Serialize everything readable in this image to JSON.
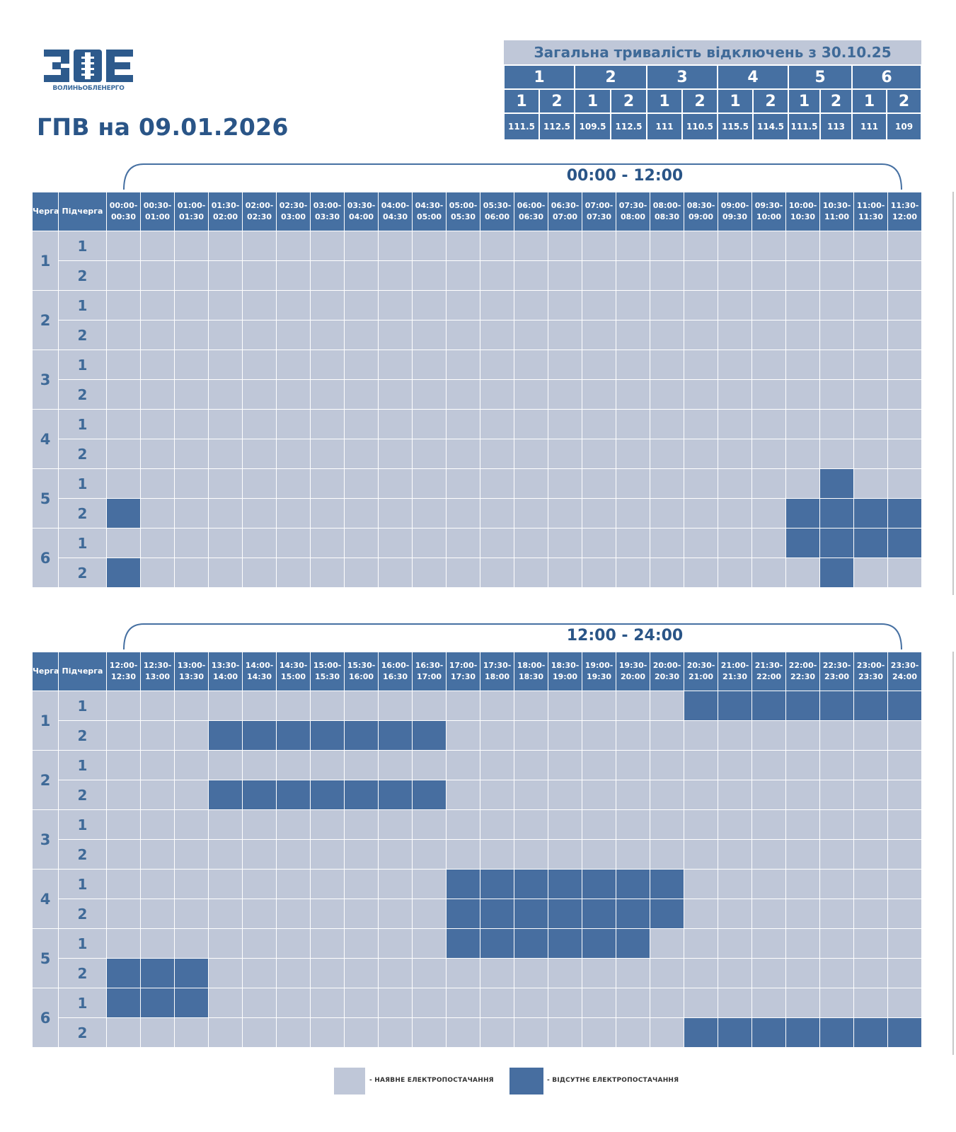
{
  "logo": {
    "mark": "ЗОЕ",
    "subtitle": "ВОЛИНЬОБЛЕНЕРГО"
  },
  "page_title": "ГПВ на 09.01.2026",
  "summary": {
    "title": "Загальна тривалість відключень з 30.10.25",
    "queues": [
      "1",
      "2",
      "3",
      "4",
      "5",
      "6"
    ],
    "subqueues": [
      "1",
      "2",
      "1",
      "2",
      "1",
      "2",
      "1",
      "2",
      "1",
      "2",
      "1",
      "2"
    ],
    "values": [
      "111.5",
      "112.5",
      "109.5",
      "112.5",
      "111",
      "110.5",
      "115.5",
      "114.5",
      "111.5",
      "113",
      "111",
      "109"
    ]
  },
  "grid_headers": {
    "queue": "Черга",
    "subqueue": "Підчерга"
  },
  "morning": {
    "range_label": "00:00 - 12:00",
    "slots": [
      "00:00-00:30",
      "00:30-01:00",
      "01:00-01:30",
      "01:30-02:00",
      "02:00-02:30",
      "02:30-03:00",
      "03:00-03:30",
      "03:30-04:00",
      "04:00-04:30",
      "04:30-05:00",
      "05:00-05:30",
      "05:30-06:00",
      "06:00-06:30",
      "06:30-07:00",
      "07:00-07:30",
      "07:30-08:00",
      "08:00-08:30",
      "08:30-09:00",
      "09:00-09:30",
      "09:30-10:00",
      "10:00-10:30",
      "10:30-11:00",
      "11:00-11:30",
      "11:30-12:00"
    ],
    "rows": [
      {
        "queue": "1",
        "sub": "1",
        "outages": []
      },
      {
        "queue": "1",
        "sub": "2",
        "outages": []
      },
      {
        "queue": "2",
        "sub": "1",
        "outages": []
      },
      {
        "queue": "2",
        "sub": "2",
        "outages": []
      },
      {
        "queue": "3",
        "sub": "1",
        "outages": []
      },
      {
        "queue": "3",
        "sub": "2",
        "outages": []
      },
      {
        "queue": "4",
        "sub": "1",
        "outages": []
      },
      {
        "queue": "4",
        "sub": "2",
        "outages": []
      },
      {
        "queue": "5",
        "sub": "1",
        "outages": [
          21
        ]
      },
      {
        "queue": "5",
        "sub": "2",
        "outages": [
          0,
          20,
          21,
          22,
          23
        ]
      },
      {
        "queue": "6",
        "sub": "1",
        "outages": [
          20,
          21,
          22,
          23
        ]
      },
      {
        "queue": "6",
        "sub": "2",
        "outages": [
          0,
          21
        ]
      }
    ]
  },
  "evening": {
    "range_label": "12:00 - 24:00",
    "slots": [
      "12:00-12:30",
      "12:30-13:00",
      "13:00-13:30",
      "13:30-14:00",
      "14:00-14:30",
      "14:30-15:00",
      "15:00-15:30",
      "15:30-16:00",
      "16:00-16:30",
      "16:30-17:00",
      "17:00-17:30",
      "17:30-18:00",
      "18:00-18:30",
      "18:30-19:00",
      "19:00-19:30",
      "19:30-20:00",
      "20:00-20:30",
      "20:30-21:00",
      "21:00-21:30",
      "21:30-22:00",
      "22:00-22:30",
      "22:30-23:00",
      "23:00-23:30",
      "23:30-24:00"
    ],
    "rows": [
      {
        "queue": "1",
        "sub": "1",
        "outages": [
          17,
          18,
          19,
          20,
          21,
          22,
          23
        ]
      },
      {
        "queue": "1",
        "sub": "2",
        "outages": [
          3,
          4,
          5,
          6,
          7,
          8,
          9
        ]
      },
      {
        "queue": "2",
        "sub": "1",
        "outages": []
      },
      {
        "queue": "2",
        "sub": "2",
        "outages": [
          3,
          4,
          5,
          6,
          7,
          8,
          9
        ]
      },
      {
        "queue": "3",
        "sub": "1",
        "outages": []
      },
      {
        "queue": "3",
        "sub": "2",
        "outages": []
      },
      {
        "queue": "4",
        "sub": "1",
        "outages": [
          10,
          11,
          12,
          13,
          14,
          15,
          16
        ]
      },
      {
        "queue": "4",
        "sub": "2",
        "outages": [
          10,
          11,
          12,
          13,
          14,
          15,
          16
        ]
      },
      {
        "queue": "5",
        "sub": "1",
        "outages": [
          10,
          11,
          12,
          13,
          14,
          15
        ]
      },
      {
        "queue": "5",
        "sub": "2",
        "outages": [
          0,
          1,
          2
        ]
      },
      {
        "queue": "6",
        "sub": "1",
        "outages": [
          0,
          1,
          2
        ]
      },
      {
        "queue": "6",
        "sub": "2",
        "outages": [
          17,
          18,
          19,
          20,
          21,
          22,
          23
        ]
      }
    ]
  },
  "legend": {
    "available": "- НАЯВНЕ ЕЛЕКТРОПОСТАЧАННЯ",
    "absent": "- ВІДСУТНЄ ЕЛЕКТРОПОСТАЧАННЯ"
  },
  "colors": {
    "available": "#bfc7d8",
    "absent": "#476ea0",
    "header": "#4670a2",
    "title": "#2a5587"
  }
}
